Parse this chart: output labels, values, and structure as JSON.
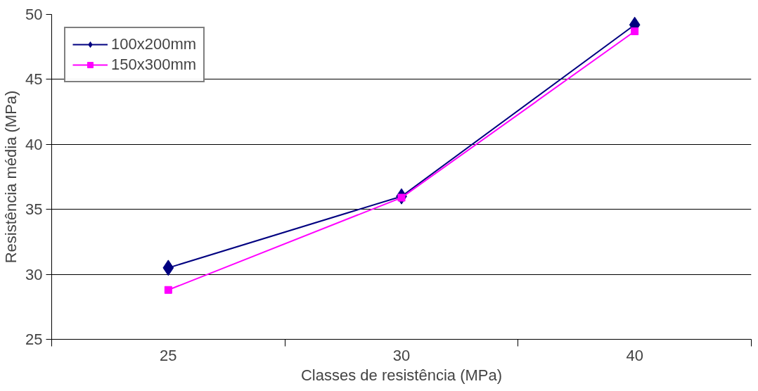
{
  "chart_data": {
    "type": "line",
    "xlabel": "Classes de resistência (MPa)",
    "ylabel": "Resistência média (MPa)",
    "categories": [
      "25",
      "30",
      "40"
    ],
    "series": [
      {
        "name": "100x200mm",
        "color": "#000080",
        "marker": "diamond",
        "values": [
          30.5,
          36.0,
          49.2
        ]
      },
      {
        "name": "150x300mm",
        "color": "#ff00ff",
        "marker": "square",
        "values": [
          28.8,
          35.9,
          48.7
        ]
      }
    ],
    "ylim": [
      25,
      50
    ],
    "yticks": [
      25,
      30,
      35,
      40,
      45,
      50
    ],
    "grid": "y",
    "legend": "top left",
    "line_style": "solid"
  }
}
